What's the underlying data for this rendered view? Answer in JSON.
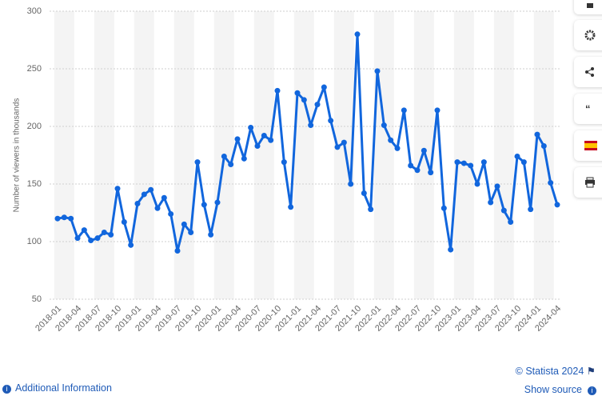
{
  "chart_data": {
    "type": "line",
    "y_label": "Number of viewers in thousands",
    "categories": [
      "2018-01",
      null,
      null,
      "2018-04",
      null,
      null,
      "2018-07",
      null,
      null,
      "2018-10",
      null,
      null,
      "2019-01",
      null,
      null,
      "2019-04",
      null,
      null,
      "2019-07",
      null,
      null,
      "2019-10",
      null,
      null,
      "2020-01",
      null,
      null,
      "2020-04",
      null,
      null,
      "2020-07",
      null,
      null,
      "2020-10",
      null,
      null,
      "2021-01",
      null,
      null,
      "2021-04",
      null,
      null,
      "2021-07",
      null,
      null,
      "2021-10",
      null,
      null,
      "2022-01",
      null,
      null,
      "2022-04",
      null,
      null,
      "2022-07",
      null,
      null,
      "2022-10",
      null,
      null,
      "2023-01",
      null,
      null,
      "2023-04",
      null,
      null,
      "2023-07",
      null,
      null,
      "2023-10",
      null,
      null,
      "2024-01",
      null,
      null,
      "2024-04"
    ],
    "values": [
      120,
      121,
      120,
      103,
      110,
      101,
      103,
      108,
      106,
      146,
      117,
      97,
      133,
      141,
      145,
      129,
      138,
      124,
      92,
      115,
      108,
      169,
      132,
      106,
      134,
      174,
      167,
      189,
      172,
      199,
      183,
      192,
      188,
      231,
      169,
      130,
      229,
      223,
      201,
      219,
      234,
      205,
      182,
      186,
      150,
      280,
      142,
      128,
      248,
      201,
      188,
      181,
      214,
      166,
      162,
      179,
      160,
      214,
      129,
      93,
      169,
      168,
      166,
      150,
      169,
      134,
      148,
      127,
      117,
      174,
      169,
      128,
      193,
      183,
      151,
      132
    ],
    "color": "#1166dd",
    "ylim": [
      50,
      300
    ],
    "yticks": [
      50,
      100,
      150,
      200,
      250,
      300
    ],
    "grid": true
  },
  "footer": {
    "copyright": "© Statista 2024",
    "additional_info": "Additional Information",
    "show_source": "Show source"
  }
}
